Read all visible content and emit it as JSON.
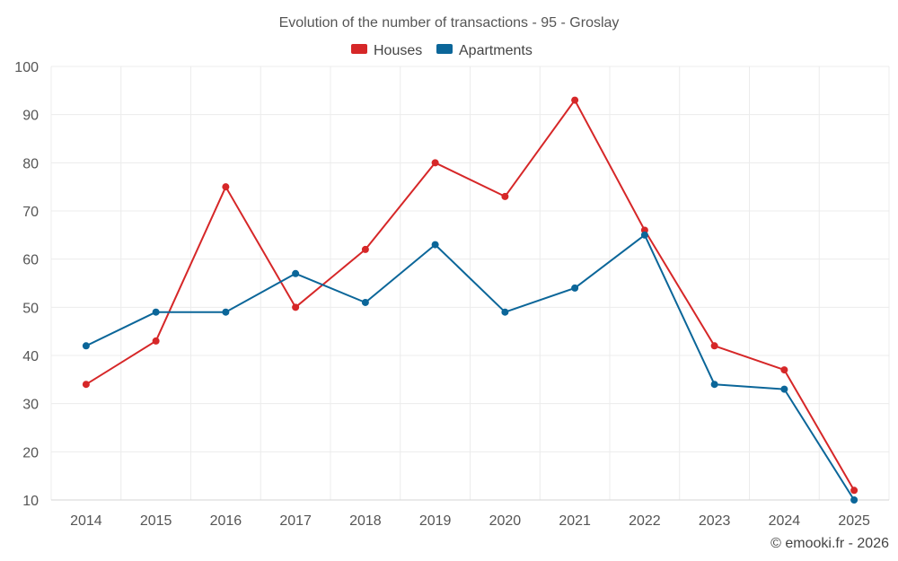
{
  "chart_data": {
    "type": "line",
    "title": "Evolution of the number of transactions - 95 - Groslay",
    "xlabel": "",
    "ylabel": "",
    "categories": [
      "2014",
      "2015",
      "2016",
      "2017",
      "2018",
      "2019",
      "2020",
      "2021",
      "2022",
      "2023",
      "2024",
      "2025"
    ],
    "ylim": [
      10,
      100
    ],
    "yticks": [
      10,
      20,
      30,
      40,
      50,
      60,
      70,
      80,
      90,
      100
    ],
    "grid": true,
    "legend_position": "top-center",
    "series": [
      {
        "name": "Houses",
        "color": "#d62728",
        "values": [
          34,
          43,
          75,
          50,
          62,
          80,
          73,
          93,
          66,
          42,
          37,
          12
        ]
      },
      {
        "name": "Apartments",
        "color": "#0b6699",
        "values": [
          42,
          49,
          49,
          57,
          51,
          63,
          49,
          54,
          65,
          34,
          33,
          10
        ]
      }
    ]
  },
  "credit": "© emooki.fr - 2026"
}
